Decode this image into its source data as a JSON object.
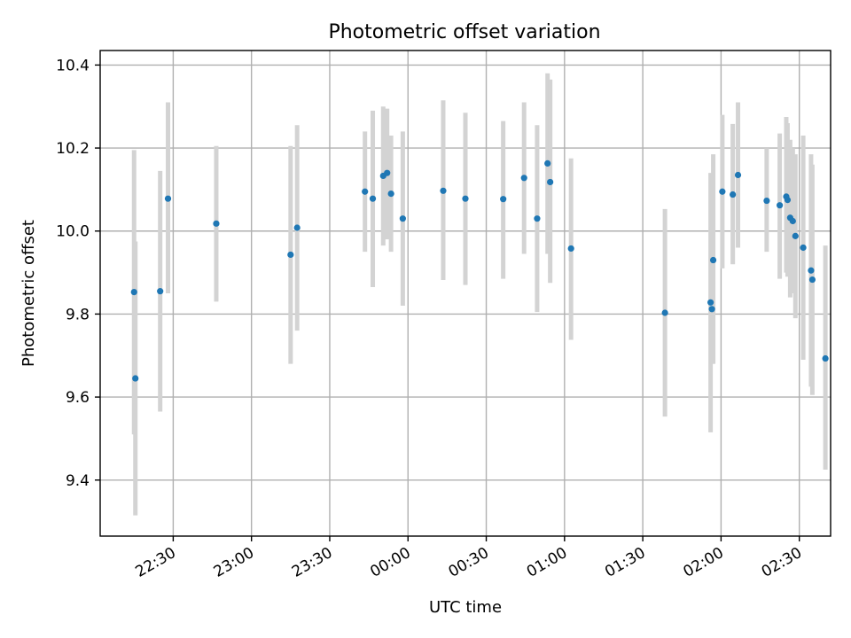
{
  "chart_data": {
    "type": "scatter",
    "title": "Photometric offset variation",
    "xlabel": "UTC time",
    "ylabel": "Photometric offset",
    "x_ticks": [
      "22:30",
      "23:00",
      "23:30",
      "00:00",
      "00:30",
      "01:00",
      "01:30",
      "02:00",
      "02:30"
    ],
    "y_ticks": [
      "9.4",
      "9.6",
      "9.8",
      "10.0",
      "10.2",
      "10.4"
    ],
    "xlim_minutes_from_2230": [
      -28,
      252
    ],
    "ylim": [
      9.265,
      10.435
    ],
    "grid": true,
    "colors": {
      "points": "#1f77b4",
      "errorbars": "#d3d3d3"
    },
    "series": [
      {
        "x_minutes_from_2230": [
          -15,
          -14.5,
          -5,
          -2,
          16.5,
          45,
          47.5,
          73.5,
          76.5,
          80.5,
          82,
          83.5,
          88,
          103.5,
          112,
          126.5,
          134.5,
          139.5,
          143.5,
          144.5,
          152.5,
          188.5,
          206,
          206.5,
          207,
          210.5,
          214.5,
          216.5,
          227.5,
          232.5,
          235,
          235.5,
          236.5,
          237.5,
          238.5,
          241.5,
          244.5,
          245,
          250
        ],
        "y": [
          9.853,
          9.645,
          9.855,
          10.078,
          10.018,
          9.943,
          10.008,
          10.095,
          10.078,
          10.133,
          10.14,
          10.09,
          10.03,
          10.097,
          10.078,
          10.077,
          10.128,
          10.03,
          10.163,
          10.118,
          9.958,
          9.803,
          9.828,
          9.812,
          9.93,
          10.095,
          10.088,
          10.135,
          10.073,
          10.062,
          10.083,
          10.075,
          10.032,
          10.024,
          9.988,
          9.96,
          9.905,
          9.883,
          9.693
        ],
        "yerr_low": [
          9.51,
          9.315,
          9.565,
          9.85,
          9.83,
          9.68,
          9.76,
          9.95,
          9.865,
          9.965,
          9.98,
          9.95,
          9.82,
          9.882,
          9.87,
          9.885,
          9.945,
          9.805,
          9.945,
          9.875,
          9.738,
          9.553,
          9.515,
          9.68,
          9.68,
          9.91,
          9.92,
          9.96,
          9.95,
          9.885,
          9.9,
          9.89,
          9.84,
          9.85,
          9.79,
          9.69,
          9.625,
          9.605,
          9.425
        ],
        "yerr_high": [
          10.195,
          9.975,
          10.145,
          10.31,
          10.205,
          10.205,
          10.255,
          10.24,
          10.29,
          10.3,
          10.295,
          10.23,
          10.24,
          10.315,
          10.285,
          10.265,
          10.31,
          10.255,
          10.38,
          10.365,
          10.175,
          10.053,
          10.14,
          10.01,
          10.185,
          10.28,
          10.258,
          10.31,
          10.2,
          10.235,
          10.275,
          10.26,
          10.22,
          10.2,
          10.185,
          10.23,
          10.185,
          10.16,
          9.965
        ]
      }
    ]
  }
}
